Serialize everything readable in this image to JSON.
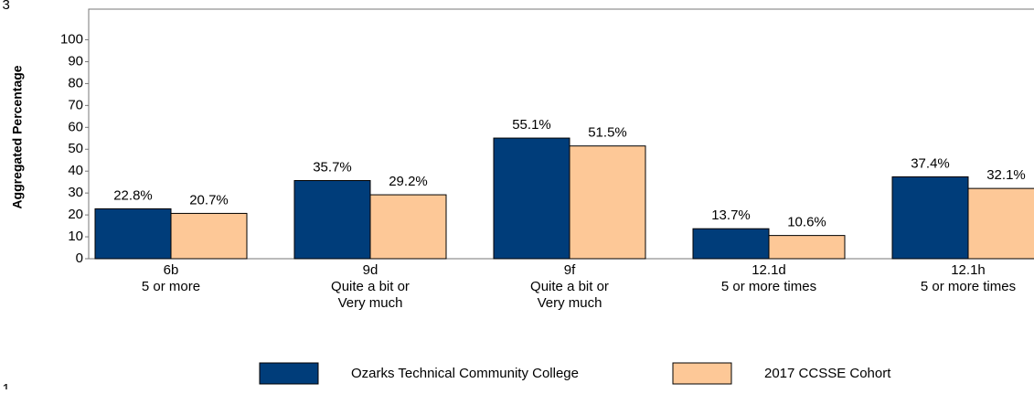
{
  "chart_data": {
    "type": "bar",
    "annotations": [
      "e 3",
      "e 1"
    ],
    "y_axis_label": "Aggregated Percentage",
    "categories": [
      [
        "6b",
        "5 or more"
      ],
      [
        "9d",
        "Quite a bit or",
        "Very much"
      ],
      [
        "9f",
        "Quite a bit or",
        "Very much"
      ],
      [
        "12.1d",
        "5 or more times"
      ],
      [
        "12.1h",
        "5 or more times"
      ]
    ],
    "series": [
      {
        "name": "Ozarks Technical Community College",
        "color": "#003d7a",
        "values": [
          22.8,
          35.7,
          55.1,
          13.7,
          37.4
        ],
        "value_labels": [
          "22.8%",
          "35.7%",
          "55.1%",
          "13.7%",
          "37.4%"
        ]
      },
      {
        "name": "2017 CCSSE Cohort",
        "color": "#fdc897",
        "values": [
          20.7,
          29.2,
          51.5,
          10.6,
          32.1
        ],
        "value_labels": [
          "20.7%",
          "29.2%",
          "51.5%",
          "10.6%",
          "32.1%"
        ]
      }
    ],
    "ylim": [
      0,
      114
    ],
    "yticks": [
      0,
      10,
      20,
      30,
      40,
      50,
      60,
      70,
      80,
      90,
      100
    ],
    "grid": false,
    "legend": "bottom"
  }
}
